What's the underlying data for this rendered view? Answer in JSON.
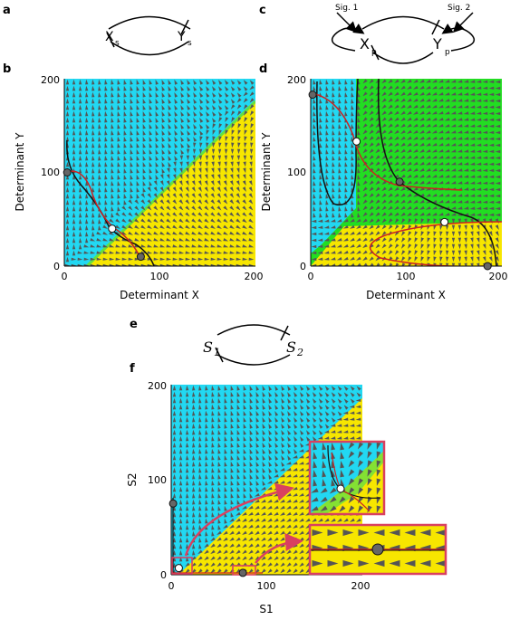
{
  "panels": {
    "a": {
      "label": "a",
      "node_x": "X",
      "node_x_sub": "s",
      "node_y": "Y",
      "node_y_sub": "s"
    },
    "b": {
      "label": "b",
      "xlabel": "Determinant X",
      "ylabel": "Determinant Y",
      "xticks": [
        "0",
        "100",
        "200"
      ],
      "yticks": [
        "0",
        "100",
        "200"
      ]
    },
    "c": {
      "label": "c",
      "node_x": "X",
      "node_x_sub": "p",
      "node_y": "Y",
      "node_y_sub": "p",
      "signal1": "Sig. 1",
      "signal2": "Sig. 2"
    },
    "d": {
      "label": "d",
      "xlabel": "Determinant X",
      "ylabel": "Determinant Y",
      "xticks": [
        "0",
        "100",
        "200"
      ],
      "yticks": [
        "0",
        "100",
        "200"
      ]
    },
    "e": {
      "label": "e",
      "node_1": "S",
      "node_1_sub": "1",
      "node_2": "S",
      "node_2_sub": "2"
    },
    "f": {
      "label": "f",
      "xlabel": "S1",
      "ylabel": "S2",
      "xticks": [
        "0",
        "100",
        "200"
      ],
      "yticks": [
        "0",
        "100",
        "200"
      ]
    }
  },
  "colors": {
    "cyan": "#22d8f2",
    "yellow": "#f7e600",
    "green": "#22dd22",
    "arrow": "#555555",
    "nullcline_red": "#cc2222",
    "separatrix": "#111111",
    "zoom_box": "#d94060"
  },
  "fixed_points": {
    "b": [
      {
        "x": 3,
        "y": 100,
        "type": "stable"
      },
      {
        "x": 50,
        "y": 40,
        "type": "unstable"
      },
      {
        "x": 80,
        "y": 10,
        "type": "stable"
      }
    ],
    "d": [
      {
        "x": 2,
        "y": 183,
        "type": "stable"
      },
      {
        "x": 48,
        "y": 133,
        "type": "unstable"
      },
      {
        "x": 93,
        "y": 90,
        "type": "stable"
      },
      {
        "x": 140,
        "y": 47,
        "type": "unstable"
      },
      {
        "x": 185,
        "y": 0,
        "type": "stable"
      }
    ],
    "f": [
      {
        "x": 2,
        "y": 75,
        "type": "stable"
      },
      {
        "x": 8,
        "y": 7,
        "type": "unstable"
      },
      {
        "x": 75,
        "y": 2,
        "type": "stable"
      }
    ]
  }
}
